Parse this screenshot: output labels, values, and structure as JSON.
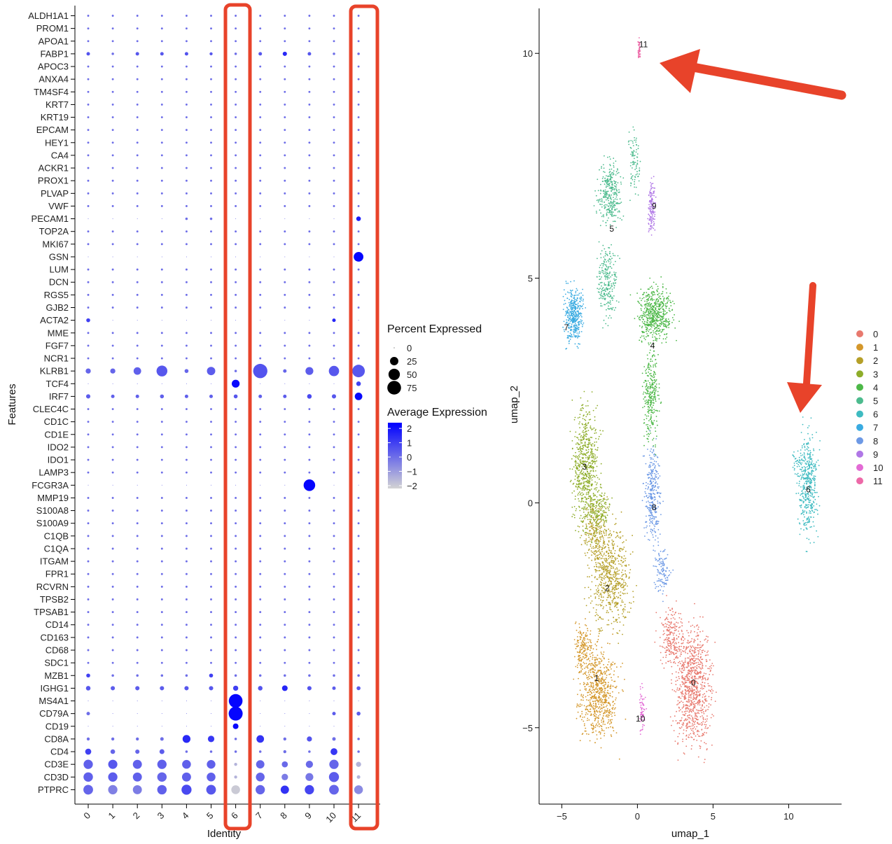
{
  "chart_data": [
    {
      "type": "dotplot",
      "xlabel": "Identity",
      "ylabel": "Features",
      "categories": [
        "0",
        "1",
        "2",
        "3",
        "4",
        "5",
        "6",
        "7",
        "8",
        "9",
        "10",
        "11"
      ],
      "features": [
        "ALDH1A1",
        "PROM1",
        "APOA1",
        "FABP1",
        "APOC3",
        "ANXA4",
        "TM4SF4",
        "KRT7",
        "KRT19",
        "EPCAM",
        "HEY1",
        "CA4",
        "ACKR1",
        "PROX1",
        "PLVAP",
        "VWF",
        "PECAM1",
        "TOP2A",
        "MKI67",
        "GSN",
        "LUM",
        "DCN",
        "RGS5",
        "GJB2",
        "ACTA2",
        "MME",
        "FGF7",
        "NCR1",
        "KLRB1",
        "TCF4",
        "IRF7",
        "CLEC4C",
        "CD1C",
        "CD1E",
        "IDO2",
        "IDO1",
        "LAMP3",
        "FCGR3A",
        "MMP19",
        "S100A8",
        "S100A9",
        "C1QB",
        "C1QA",
        "ITGAM",
        "FPR1",
        "RCVRN",
        "TPSB2",
        "TPSAB1",
        "CD14",
        "CD163",
        "CD68",
        "SDC1",
        "MZB1",
        "IGHG1",
        "MS4A1",
        "CD79A",
        "CD19",
        "CD8A",
        "CD4",
        "CD3E",
        "CD3D",
        "PTPRC"
      ],
      "size_legend": {
        "title": "Percent Expressed",
        "breaks": [
          0,
          25,
          50,
          75
        ]
      },
      "color_legend": {
        "title": "Average Expression",
        "breaks": [
          2,
          1,
          0,
          -1,
          -2
        ],
        "break_labels": [
          "2",
          "1",
          "0",
          "−1",
          "−2"
        ],
        "low_color": "#d3d3d3",
        "high_color": "#0000ff",
        "range": [
          -2.2,
          2.4
        ]
      },
      "notable": [
        {
          "feature": "PTPRC",
          "pct": [
            35,
            32,
            30,
            33,
            38,
            35,
            28,
            32,
            25,
            32,
            35,
            28
          ],
          "avg": [
            0.2,
            -0.4,
            -0.3,
            0.3,
            0.8,
            0.5,
            -2.0,
            0.2,
            1.3,
            0.9,
            0.2,
            -0.6
          ]
        },
        {
          "feature": "CD3D",
          "pct": [
            33,
            32,
            30,
            33,
            30,
            28,
            2,
            28,
            14,
            22,
            38,
            3
          ],
          "avg": [
            0.3,
            0.4,
            0.3,
            0.2,
            0.3,
            0.3,
            -1.5,
            0.2,
            -0.3,
            -0.2,
            0.4,
            -1.5
          ]
        },
        {
          "feature": "CD3E",
          "pct": [
            32,
            31,
            30,
            32,
            28,
            27,
            2,
            25,
            12,
            18,
            32,
            8
          ],
          "avg": [
            0.3,
            0.5,
            0.3,
            0.3,
            0.3,
            0.3,
            -1.5,
            0.2,
            0.1,
            0.1,
            0.2,
            -1.5
          ]
        },
        {
          "feature": "CD4",
          "pct": [
            12,
            6,
            5,
            7,
            1,
            1,
            1,
            1,
            2,
            1,
            16,
            1
          ],
          "avg": [
            1.0,
            0.2,
            0.2,
            0.4,
            0.0,
            0.0,
            0.0,
            0.0,
            0.0,
            0.0,
            1.2,
            0.0
          ]
        },
        {
          "feature": "CD8A",
          "pct": [
            2,
            2,
            2,
            3,
            22,
            14,
            1,
            20,
            2,
            8,
            3,
            1
          ],
          "avg": [
            0.0,
            0.0,
            0.0,
            0.0,
            1.5,
            1.2,
            0.0,
            1.3,
            0.0,
            0.6,
            0.0,
            0.0
          ]
        },
        {
          "feature": "CD19",
          "pct": [
            0,
            0,
            0,
            0,
            0,
            0,
            10,
            0,
            0,
            0,
            0,
            0
          ],
          "avg": [
            0,
            0,
            0,
            0,
            0,
            0,
            2.2,
            0,
            0,
            0,
            0,
            0
          ]
        },
        {
          "feature": "CD79A",
          "pct": [
            3,
            0,
            0,
            0,
            0,
            0,
            78,
            0,
            0,
            0,
            3,
            4
          ],
          "avg": [
            0,
            0,
            0,
            0,
            0,
            0,
            2.3,
            0,
            0,
            0,
            0.4,
            0.4
          ]
        },
        {
          "feature": "MS4A1",
          "pct": [
            0,
            0,
            0,
            0,
            0,
            0,
            75,
            0,
            0,
            0,
            0,
            0
          ],
          "avg": [
            0,
            0,
            0,
            0,
            0,
            0,
            2.3,
            0,
            0,
            0,
            0,
            0
          ]
        },
        {
          "feature": "IGHG1",
          "pct": [
            6,
            5,
            5,
            5,
            5,
            5,
            8,
            6,
            10,
            5,
            3,
            4
          ],
          "avg": [
            0.5,
            0.4,
            0.4,
            0.4,
            0.5,
            0.5,
            1.0,
            0.6,
            1.6,
            0.6,
            0.4,
            0.4
          ]
        },
        {
          "feature": "MZB1",
          "pct": [
            4,
            1,
            1,
            1,
            1,
            4,
            1,
            1,
            1,
            1,
            1,
            1
          ],
          "avg": [
            1.0,
            0,
            0,
            0,
            0,
            1.0,
            0,
            0,
            0,
            0,
            0,
            0
          ]
        },
        {
          "feature": "FCGR3A",
          "pct": [
            0,
            0,
            0,
            0,
            0,
            0,
            0,
            0,
            0,
            52,
            0,
            0
          ],
          "avg": [
            0,
            0,
            0,
            0,
            0,
            0,
            0,
            0,
            0,
            2.3,
            0,
            0
          ]
        },
        {
          "feature": "IRF7",
          "pct": [
            5,
            3,
            3,
            4,
            3,
            3,
            4,
            3,
            3,
            6,
            5,
            20
          ],
          "avg": [
            0.4,
            0.3,
            0.3,
            0.3,
            0.3,
            0.3,
            0.5,
            0.3,
            0.4,
            0.8,
            0.5,
            2.2
          ]
        },
        {
          "feature": "TCF4",
          "pct": [
            0,
            0,
            0,
            0,
            0,
            0,
            22,
            0,
            0,
            0,
            0,
            6
          ],
          "avg": [
            0,
            0,
            0,
            0,
            0,
            0,
            2.2,
            0,
            0,
            0,
            0,
            1.0
          ]
        },
        {
          "feature": "KLRB1",
          "pct": [
            8,
            8,
            20,
            45,
            4,
            25,
            1,
            82,
            3,
            22,
            40,
            62
          ],
          "avg": [
            0.2,
            0.2,
            0.3,
            0.5,
            0.2,
            0.4,
            0,
            0.6,
            0.2,
            0.4,
            0.5,
            0.5
          ]
        },
        {
          "feature": "GSN",
          "pct": [
            0,
            0,
            0,
            0,
            0,
            0,
            0,
            0,
            0,
            0,
            0,
            35
          ],
          "avg": [
            0,
            0,
            0,
            0,
            0,
            0,
            0,
            0,
            0,
            0,
            0,
            2.3
          ]
        },
        {
          "feature": "PECAM1",
          "pct": [
            0,
            0,
            0,
            0,
            1,
            1,
            0,
            0,
            0,
            0,
            0,
            6
          ],
          "avg": [
            0,
            0,
            0,
            0,
            0,
            0,
            0,
            0,
            0,
            0,
            0,
            1.8
          ]
        },
        {
          "feature": "ACTA2",
          "pct": [
            4,
            0,
            0,
            0,
            0,
            0,
            0,
            0,
            0,
            0,
            3,
            0
          ],
          "avg": [
            1.0,
            0,
            0,
            0,
            0,
            0,
            0,
            0,
            0,
            0,
            1.6,
            0
          ]
        },
        {
          "feature": "FABP1",
          "pct": [
            3,
            1,
            3,
            3,
            3,
            2,
            1,
            3,
            5,
            3,
            1,
            1
          ],
          "avg": [
            0.6,
            0,
            0.5,
            0.5,
            0.6,
            0.5,
            0,
            0.5,
            1.5,
            0.5,
            0,
            0
          ]
        }
      ]
    },
    {
      "type": "scatter",
      "xlabel": "umap_1",
      "ylabel": "umap_2",
      "xlim": [
        -6.5,
        13.5
      ],
      "ylim": [
        -6.7,
        11.0
      ],
      "xticks": [
        -5,
        0,
        5,
        10
      ],
      "yticks": [
        -5,
        0,
        5,
        10
      ],
      "xtick_labels": [
        "−5",
        "0",
        "5",
        "10"
      ],
      "ytick_labels": [
        "−5",
        "0",
        "5",
        "10"
      ],
      "legend_labels": [
        "0",
        "1",
        "2",
        "3",
        "4",
        "5",
        "6",
        "7",
        "8",
        "9",
        "10",
        "11"
      ],
      "cluster_colors": [
        "#E8796E",
        "#D4972B",
        "#B59F28",
        "#8EAD2A",
        "#4DB848",
        "#4DBB8E",
        "#3EBBC1",
        "#3AABE1",
        "#6D99E5",
        "#B077E6",
        "#E36BD5",
        "#ED69A8"
      ],
      "clusters": [
        {
          "label": "0",
          "label_pos": [
            3.7,
            -4.0
          ]
        },
        {
          "label": "1",
          "label_pos": [
            -2.7,
            -3.9
          ]
        },
        {
          "label": "2",
          "label_pos": [
            -2.0,
            -1.9
          ]
        },
        {
          "label": "3",
          "label_pos": [
            -3.5,
            0.8
          ]
        },
        {
          "label": "4",
          "label_pos": [
            1.0,
            3.5
          ]
        },
        {
          "label": "5",
          "label_pos": [
            -1.7,
            6.1
          ]
        },
        {
          "label": "6",
          "label_pos": [
            11.3,
            0.3
          ]
        },
        {
          "label": "7",
          "label_pos": [
            -4.7,
            3.9
          ]
        },
        {
          "label": "8",
          "label_pos": [
            1.1,
            -0.1
          ]
        },
        {
          "label": "9",
          "label_pos": [
            1.1,
            6.6
          ]
        },
        {
          "label": "10",
          "label_pos": [
            0.2,
            -4.8
          ]
        },
        {
          "label": "11",
          "label_pos": [
            0.4,
            10.2
          ]
        }
      ]
    }
  ]
}
